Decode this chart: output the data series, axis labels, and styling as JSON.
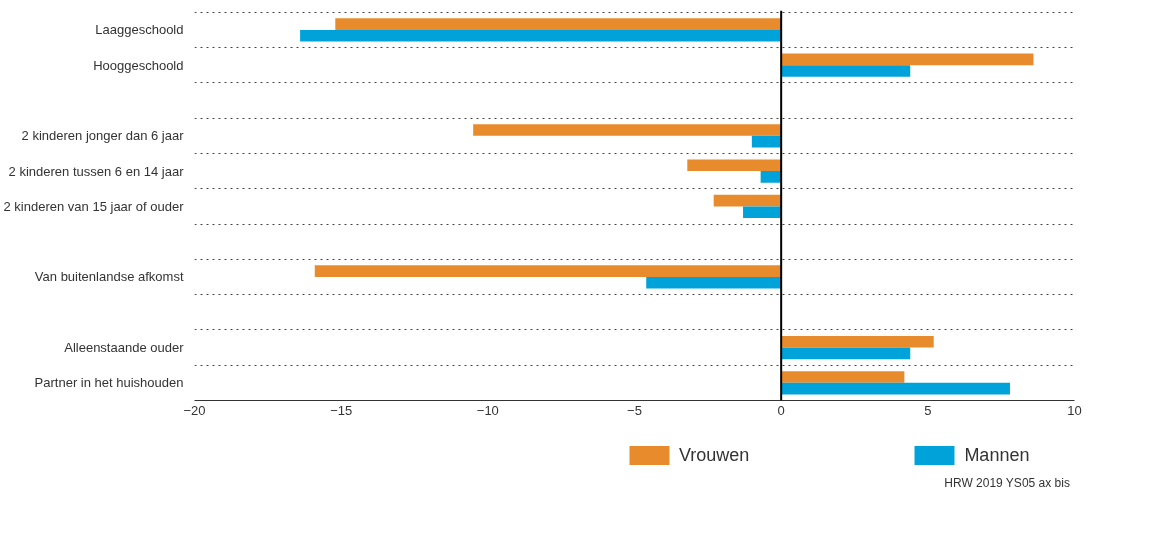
{
  "chart_data": {
    "type": "bar",
    "orientation": "horizontal",
    "categories": [
      "Laaggeschoold",
      "Hooggeschoold",
      null,
      "2 kinderen jonger dan 6 jaar",
      "2 kinderen tussen 6 en 14 jaar",
      "2 kinderen van 15 jaar of ouder",
      null,
      "Van buitenlandse afkomst",
      null,
      "Alleenstaande ouder",
      "Partner in het huishouden"
    ],
    "series": [
      {
        "name": "Vrouwen",
        "color": "#e88b2c",
        "values": [
          -15.2,
          8.6,
          null,
          -10.5,
          -3.2,
          -2.3,
          null,
          -15.9,
          null,
          5.2,
          4.2
        ]
      },
      {
        "name": "Mannen",
        "color": "#00a3d9",
        "values": [
          -16.4,
          4.4,
          null,
          -1.0,
          -0.7,
          -1.3,
          null,
          -4.6,
          null,
          4.4,
          7.8
        ]
      }
    ],
    "xlim": [
      -20,
      10
    ],
    "xticks": [
      -20,
      -15,
      -10,
      -5,
      0,
      5,
      10
    ],
    "grid": "y",
    "legend": "bottom",
    "ref_lines": [
      {
        "axis": "x",
        "value": 0,
        "color": "#000000"
      }
    ],
    "annotations": [
      "HRW  2019  YS05  ax  bis"
    ]
  }
}
